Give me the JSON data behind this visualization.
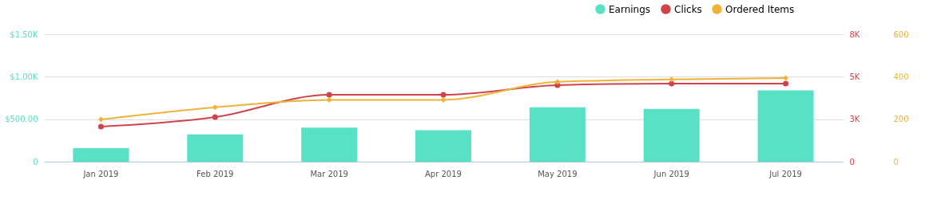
{
  "chart_data": {
    "type": "bar",
    "categories": [
      "Jan 2019",
      "Feb 2019",
      "Mar 2019",
      "Apr 2019",
      "May 2019",
      "Jun 2019",
      "Jul 2019"
    ],
    "series": [
      {
        "name": "Earnings",
        "color": "#58e1c4",
        "values": [
          160,
          320,
          400,
          370,
          640,
          620,
          840
        ]
      },
      {
        "name": "Clicks",
        "type": "line",
        "axis": "y2",
        "marker": "circle",
        "color": "#d0434a",
        "values": [
          2200,
          2800,
          4200,
          4200,
          4800,
          4900,
          4900
        ]
      },
      {
        "name": "Ordered Items",
        "type": "line",
        "axis": "y3",
        "marker": "diamond",
        "color": "#f0b33a",
        "values": [
          199,
          256,
          291,
          291,
          376,
          387,
          394
        ]
      }
    ],
    "ylim": [
      0,
      1500
    ],
    "yticks": [
      0,
      {
        "value": 500,
        "label": "$500.00"
      },
      {
        "value": 1000,
        "label": "$1.00K"
      },
      {
        "value": 1500,
        "label": "$1.50K"
      }
    ],
    "y2lim": [
      0,
      8000
    ],
    "y2ticks": [
      0,
      {
        "value": 2667,
        "label": "3K"
      },
      {
        "value": 5333,
        "label": "5K"
      },
      {
        "value": 8000,
        "label": "8K"
      }
    ],
    "y3lim": [
      0,
      600
    ],
    "y3ticks": [
      0,
      200,
      400,
      600
    ],
    "grid": "y",
    "legend": "top right"
  }
}
